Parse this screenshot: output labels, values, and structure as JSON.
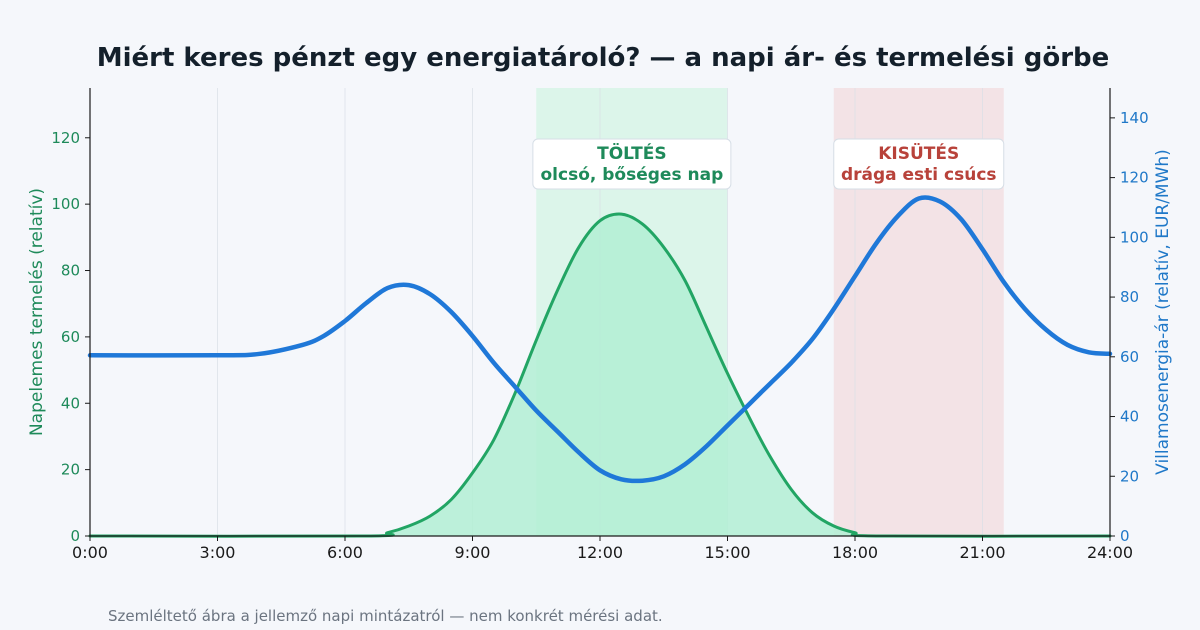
{
  "chart_data": {
    "type": "line",
    "title": "Miért keres pénzt egy energiatároló? — a napi ár- és termelési görbe",
    "ylabel_left": "Napelemes termelés (relatív)",
    "ylabel_right": "Villamosenergia-ár (relatív, EUR/MWh)",
    "xlim": [
      0,
      24
    ],
    "ylim_left": [
      0,
      135
    ],
    "ylim_right": [
      0,
      150
    ],
    "x_ticks": [
      0,
      3,
      6,
      9,
      12,
      15,
      18,
      21,
      24
    ],
    "x_tick_labels": [
      "0:00",
      "3:00",
      "6:00",
      "9:00",
      "12:00",
      "15:00",
      "18:00",
      "21:00",
      "24:00"
    ],
    "y_ticks_left": [
      0,
      20,
      40,
      60,
      80,
      100,
      120
    ],
    "y_ticks_right": [
      0,
      20,
      40,
      60,
      80,
      100,
      120,
      140
    ],
    "grid": "vertical",
    "series": [
      {
        "name": "Napelemes termelés",
        "axis": "left",
        "color": "#22a564",
        "fill": "#b2efd3",
        "x": [
          0,
          6.5,
          7,
          7.5,
          8,
          8.5,
          9,
          9.5,
          10,
          10.5,
          11,
          11.5,
          12,
          12.5,
          13,
          13.5,
          14,
          14.5,
          15,
          15.5,
          16,
          16.5,
          17,
          17.5,
          18,
          18.5,
          24
        ],
        "values": [
          0,
          0,
          1,
          3,
          6,
          11,
          19,
          29,
          43,
          59,
          74,
          87,
          95,
          97,
          94,
          87,
          77,
          63,
          49,
          36,
          24,
          14,
          7,
          3,
          1,
          0,
          0
        ]
      },
      {
        "name": "Villamosenergia-ár",
        "axis": "right",
        "color": "#1f78d8",
        "x": [
          0,
          3,
          4,
          5,
          5.5,
          6,
          6.5,
          7,
          7.5,
          8,
          8.5,
          9,
          9.5,
          10,
          10.5,
          11,
          11.5,
          12,
          12.5,
          13,
          13.5,
          14,
          14.5,
          15,
          15.5,
          16,
          16.5,
          17,
          17.5,
          18,
          18.5,
          19,
          19.5,
          20,
          20.5,
          21,
          21.5,
          22,
          22.5,
          23,
          23.5,
          24
        ],
        "values": [
          60.5,
          60.5,
          61,
          64,
          67,
          72,
          78,
          83,
          84,
          81,
          75,
          67,
          58,
          50,
          42,
          35,
          28,
          22,
          19,
          18.5,
          20,
          24,
          30,
          37,
          44,
          51,
          58,
          66,
          76,
          87,
          98,
          107,
          113,
          112,
          106,
          96,
          85,
          76,
          69,
          64,
          61.5,
          61
        ]
      }
    ],
    "regions": [
      {
        "from": 10.5,
        "to": 15,
        "color": "#dcf5ea",
        "label_line1": "TÖLTÉS",
        "label_line2": "olcsó, bőséges nap",
        "text_color": "#1e8a5a"
      },
      {
        "from": 17.5,
        "to": 21.5,
        "color": "#f3e3e6",
        "label_line1": "KISÜTÉS",
        "label_line2": "drága esti csúcs",
        "text_color": "#b8423a"
      }
    ],
    "note": "Szemléltető ábra a jellemző napi mintázatról — nem konkrét mérési adat."
  }
}
